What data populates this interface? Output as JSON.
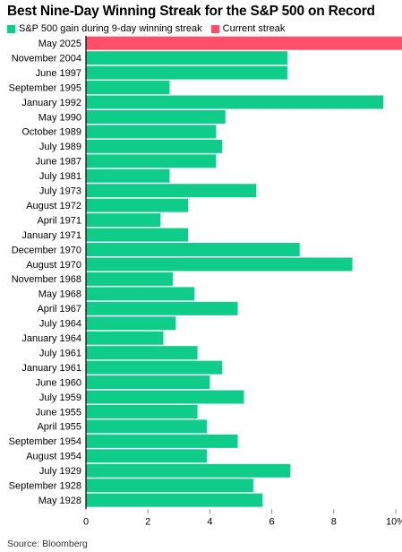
{
  "colors": {
    "historical": "#10cc8a",
    "current": "#ff4f68",
    "axis": "#000000",
    "tick": "#888888"
  },
  "legend": {
    "historical_label": "S&P 500 gain during 9-day winning streak",
    "current_label": "Current streak"
  },
  "source": "Source: Bloomberg",
  "chart_data": {
    "type": "bar",
    "orientation": "horizontal",
    "title": "Best Nine-Day Winning Streak for the S&P 500 on Record",
    "xlabel": "",
    "ylabel": "",
    "xlim": [
      0,
      10
    ],
    "x_ticks": [
      "0",
      "2",
      "4",
      "6",
      "8",
      "10%"
    ],
    "grid": false,
    "legend_position": "top-left",
    "categories": [
      "May 2025",
      "November 2004",
      "June 1997",
      "September 1995",
      "January 1992",
      "May 1990",
      "October 1989",
      "July 1989",
      "June 1987",
      "July 1981",
      "July 1973",
      "August 1972",
      "April 1971",
      "January 1971",
      "December 1970",
      "August 1970",
      "November 1968",
      "May 1968",
      "April 1967",
      "July 1964",
      "January 1964",
      "July 1961",
      "January 1961",
      "June 1960",
      "July 1959",
      "June 1955",
      "April 1955",
      "September 1954",
      "August 1954",
      "July 1929",
      "September 1928",
      "May 1928"
    ],
    "values": [
      10.2,
      6.5,
      6.5,
      2.7,
      9.6,
      4.5,
      4.2,
      4.4,
      4.2,
      2.7,
      5.5,
      3.3,
      2.4,
      3.3,
      6.9,
      8.6,
      2.8,
      3.5,
      4.9,
      2.9,
      2.5,
      3.6,
      4.4,
      4.0,
      5.1,
      3.6,
      3.9,
      4.9,
      3.9,
      6.6,
      5.4,
      5.7
    ],
    "highlight_index": 0
  }
}
